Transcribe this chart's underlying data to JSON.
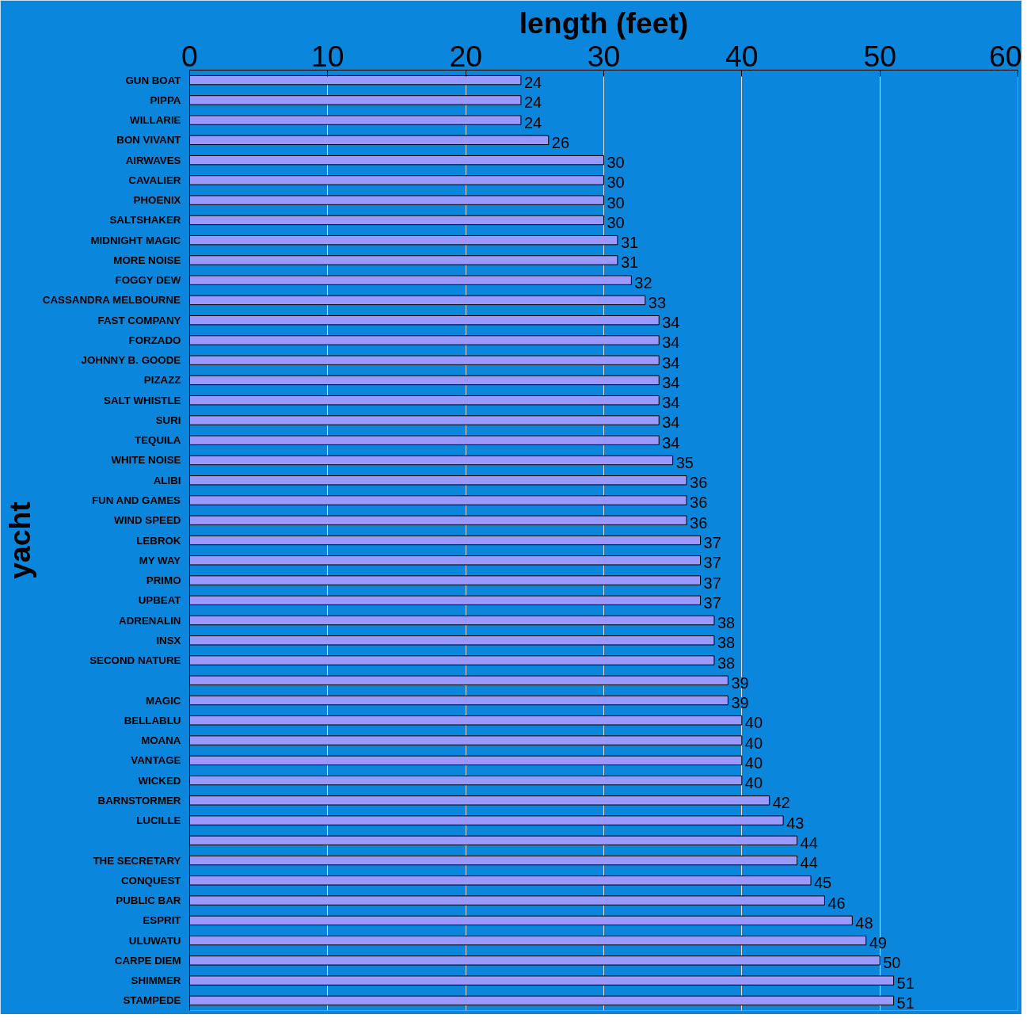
{
  "chart_data": {
    "type": "bar",
    "orientation": "horizontal",
    "title": "length (feet)",
    "ylabel": "yacht",
    "categories": [
      "GUN BOAT",
      "PIPPA",
      "WILLARIE",
      "BON VIVANT",
      "AIRWAVES",
      "CAVALIER",
      "PHOENIX",
      "SALTSHAKER",
      "MIDNIGHT MAGIC",
      "MORE NOISE",
      "FOGGY DEW",
      "CASSANDRA MELBOURNE",
      "FAST COMPANY",
      "FORZADO",
      "JOHNNY B. GOODE",
      "PIZAZZ",
      "SALT WHISTLE",
      "SURI",
      "TEQUILA",
      "WHITE NOISE",
      "ALIBI",
      "FUN AND GAMES",
      "WIND SPEED",
      "LEBROK",
      "MY WAY",
      "PRIMO",
      "UPBEAT",
      "ADRENALIN",
      "INSX",
      "SECOND NATURE",
      null,
      "MAGIC",
      "BELLABLU",
      "MOANA",
      "VANTAGE",
      "WICKED",
      "BARNSTORMER",
      "LUCILLE",
      null,
      "THE SECRETARY",
      "CONQUEST",
      "PUBLIC BAR",
      "ESPRIT",
      "ULUWATU",
      "CARPE DIEM",
      "SHIMMER",
      "STAMPEDE"
    ],
    "values": [
      24,
      24,
      24,
      26,
      30,
      30,
      30,
      30,
      31,
      31,
      32,
      33,
      34,
      34,
      34,
      34,
      34,
      34,
      34,
      35,
      36,
      36,
      36,
      37,
      37,
      37,
      37,
      38,
      38,
      38,
      39,
      39,
      40,
      40,
      40,
      40,
      42,
      43,
      44,
      44,
      45,
      46,
      48,
      49,
      50,
      51,
      51
    ],
    "color": "#9999ff",
    "xlim": [
      0,
      60
    ],
    "xticks": [
      0,
      10,
      20,
      30,
      40,
      50,
      60
    ],
    "grid": "x",
    "data_labels": true
  }
}
